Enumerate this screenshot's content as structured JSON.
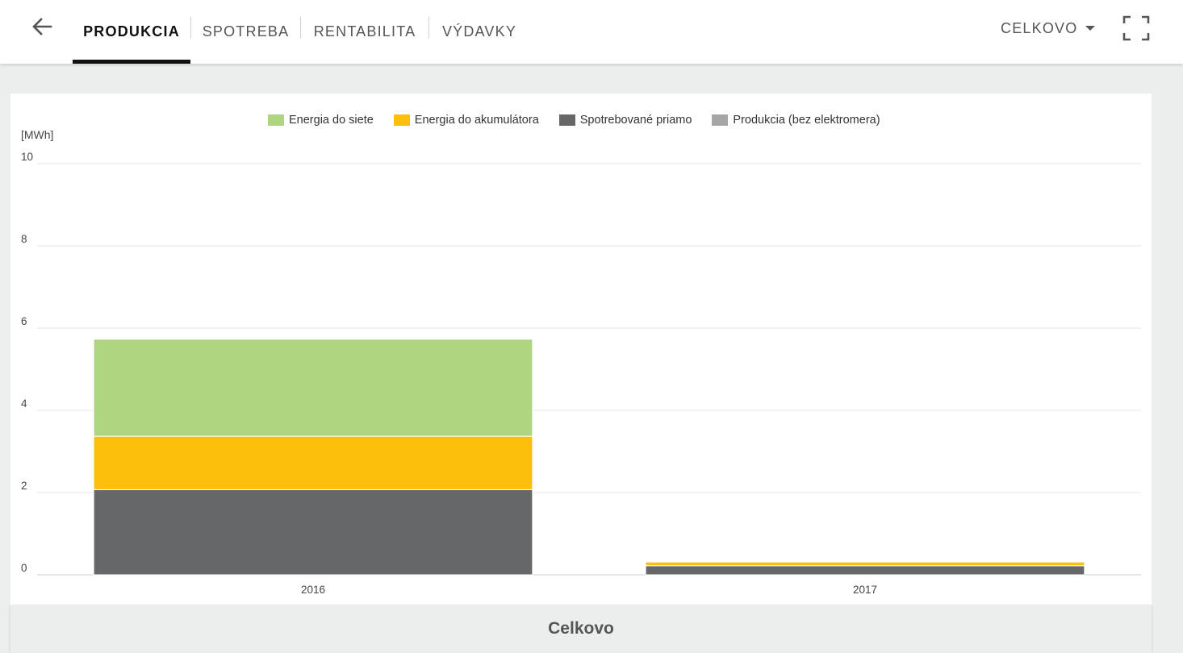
{
  "tabs": [
    {
      "label": "PRODUKCIA",
      "active": true
    },
    {
      "label": "SPOTREBA",
      "active": false
    },
    {
      "label": "RENTABILITA",
      "active": false
    },
    {
      "label": "VÝDAVKY",
      "active": false
    }
  ],
  "period_select": {
    "value": "CELKOVO"
  },
  "icons": {
    "back": "arrow-left-icon",
    "fullscreen": "fullscreen-icon",
    "dropdown": "caret-down-icon"
  },
  "footer": {
    "title": "Celkovo"
  },
  "colors": {
    "grid": "#e6e6e6",
    "axis_text": "#444444"
  },
  "chart_data": {
    "type": "bar",
    "stacked": true,
    "title": "",
    "xlabel": "",
    "ylabel": "[MWh]",
    "ylim": [
      0,
      10
    ],
    "yticks": [
      0,
      2,
      4,
      6,
      8,
      10
    ],
    "grid": true,
    "legend_position": "top-center",
    "categories": [
      "2016",
      "2017"
    ],
    "series": [
      {
        "name": "Energia do siete",
        "color": "#afd580",
        "values": [
          2.36,
          0.0
        ]
      },
      {
        "name": "Energia do akumulátora",
        "color": "#fdbf0c",
        "values": [
          1.3,
          0.09
        ]
      },
      {
        "name": "Spotrebované priamo",
        "color": "#666769",
        "values": [
          2.07,
          0.22
        ]
      },
      {
        "name": "Produkcia (bez elektromera)",
        "color": "#a6a6a6",
        "values": [
          0.0,
          0.0
        ]
      }
    ]
  }
}
